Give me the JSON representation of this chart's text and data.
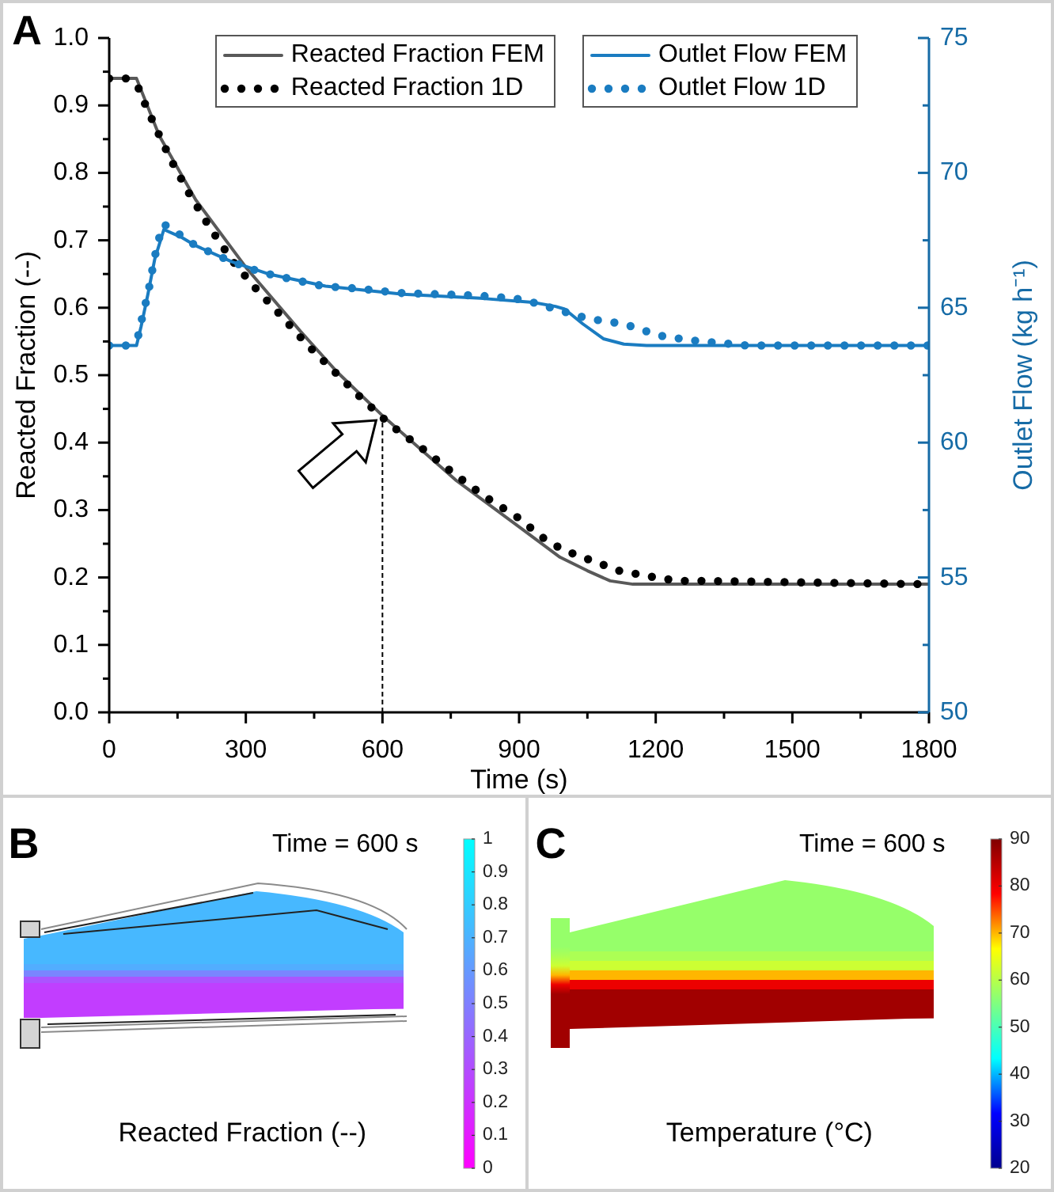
{
  "chart_data": [
    {
      "type": "line",
      "annotations": [
        "A"
      ],
      "xlabel": "Time (s)",
      "ylabel": "Reacted Fraction (--)",
      "y2label": "Outlet Flow (kg h⁻¹)",
      "xlim": [
        0,
        1800
      ],
      "xticks": [
        0,
        {
          "value": 150,
          "label": null
        },
        300,
        {
          "value": 450,
          "label": null
        },
        600,
        {
          "value": 750,
          "label": null
        },
        900,
        {
          "value": 1050,
          "label": null
        },
        1200,
        {
          "value": 1350,
          "label": null
        },
        1500,
        {
          "value": 1650,
          "label": null
        },
        1800
      ],
      "ylim": [
        0,
        1
      ],
      "yticks": [
        {
          "value": 0,
          "label": "0.0"
        },
        {
          "value": 0.05,
          "label": null
        },
        0.1,
        {
          "value": 0.15,
          "label": null
        },
        0.2,
        {
          "value": 0.25,
          "label": null
        },
        0.3,
        {
          "value": 0.35,
          "label": null
        },
        0.4,
        {
          "value": 0.45,
          "label": null
        },
        0.5,
        {
          "value": 0.55,
          "label": null
        },
        0.6,
        {
          "value": 0.65,
          "label": null
        },
        0.7,
        {
          "value": 0.75,
          "label": null
        },
        0.8,
        {
          "value": 0.85,
          "label": null
        },
        0.9,
        {
          "value": 0.95,
          "label": null
        },
        {
          "value": 1,
          "label": "1.0"
        }
      ],
      "y2lim": [
        50,
        75
      ],
      "y2ticks": [
        50,
        {
          "value": 52.5,
          "label": null
        },
        55,
        {
          "value": 57.5,
          "label": null
        },
        60,
        {
          "value": 62.5,
          "label": null
        },
        65,
        {
          "value": 67.5,
          "label": null
        },
        70,
        {
          "value": 72.5,
          "label": null
        },
        75
      ],
      "legend": "top",
      "ref_lines": [
        {
          "axis": "x",
          "value": 600,
          "line_style": "dashed",
          "color": "#000000"
        }
      ],
      "series": [
        {
          "name": "Reacted Fraction FEM",
          "color": "#595959",
          "line_style": "solid",
          "x": [
            0,
            60,
            110,
            190,
            300,
            420,
            500,
            600,
            760,
            900,
            990,
            1050,
            1100,
            1150,
            1800
          ],
          "values": [
            0.94,
            0.94,
            0.855,
            0.76,
            0.66,
            0.565,
            0.505,
            0.44,
            0.345,
            0.275,
            0.23,
            0.21,
            0.195,
            0.19,
            0.19
          ]
        },
        {
          "name": "Reacted Fraction 1D",
          "color": "#000000",
          "line_style": "dotted",
          "x": [
            0,
            40,
            65,
            80,
            100,
            135,
            175,
            220,
            270,
            320,
            375,
            435,
            495,
            555,
            620,
            690,
            755,
            825,
            895,
            960,
            1000,
            1040,
            1080,
            1120,
            1160,
            1200,
            1250,
            1300,
            1800
          ],
          "values": [
            0.94,
            0.94,
            0.925,
            0.9,
            0.87,
            0.82,
            0.77,
            0.72,
            0.67,
            0.63,
            0.59,
            0.545,
            0.505,
            0.465,
            0.425,
            0.39,
            0.355,
            0.32,
            0.29,
            0.255,
            0.24,
            0.23,
            0.22,
            0.21,
            0.205,
            0.2,
            0.195,
            0.195,
            0.19
          ]
        },
        {
          "name": "Outlet Flow FEM",
          "color": "#1a7cc1",
          "line_style": "solid",
          "axis": "y2",
          "x": [
            0,
            60,
            70,
            85,
            100,
            120,
            160,
            190,
            270,
            350,
            475,
            645,
            815,
            930,
            980,
            1000,
            1040,
            1085,
            1130,
            1180,
            1800
          ],
          "values": [
            63.6,
            63.6,
            64.3,
            65.5,
            66.8,
            67.9,
            67.6,
            67.3,
            66.7,
            66.25,
            65.8,
            65.5,
            65.35,
            65.2,
            65.05,
            64.95,
            64.4,
            63.85,
            63.65,
            63.6,
            63.6
          ]
        },
        {
          "name": "Outlet Flow 1D",
          "color": "#1a7cc1",
          "line_style": "dotted",
          "axis": "y2",
          "x": [
            0,
            40,
            65,
            73,
            85,
            99,
            108,
            120,
            156,
            190,
            230,
            270,
            310,
            350,
            390,
            430,
            470,
            555,
            635,
            725,
            810,
            890,
            930,
            970,
            1010,
            1050,
            1090,
            1130,
            1175,
            1215,
            1255,
            1300,
            1340,
            1400,
            1800
          ],
          "values": [
            63.6,
            63.6,
            64.0,
            64.7,
            65.5,
            66.8,
            67.5,
            68.1,
            67.7,
            67.3,
            67.0,
            66.7,
            66.45,
            66.25,
            66.1,
            65.95,
            65.8,
            65.7,
            65.55,
            65.5,
            65.45,
            65.35,
            65.2,
            65.0,
            64.8,
            64.6,
            64.5,
            64.4,
            64.15,
            63.95,
            63.85,
            63.75,
            63.7,
            63.6,
            63.6
          ]
        }
      ]
    },
    {
      "type": "heatmap",
      "annotations": [
        "B"
      ],
      "title": "Time = 600 s",
      "clabel": "Reacted Fraction (--)",
      "categories": [
        null
      ],
      "y_categories": [
        null,
        null,
        null,
        null,
        null,
        null,
        null,
        null,
        null,
        null,
        null
      ],
      "cells": [
        [
          0.72
        ],
        [
          0.72
        ],
        [
          0.72
        ],
        [
          0.72
        ],
        [
          0.68
        ],
        [
          0.52
        ],
        [
          0.33
        ],
        [
          0.25
        ],
        [
          0.24
        ],
        [
          0.24
        ],
        [
          0.24
        ]
      ],
      "clim": [
        0,
        1
      ],
      "cticks": [
        0,
        0.1,
        0.2,
        0.3,
        0.4,
        0.5,
        0.6,
        0.7,
        0.8,
        0.9,
        1
      ],
      "colors": [
        "#ff00ff",
        "#00ffff"
      ]
    },
    {
      "type": "heatmap",
      "annotations": [
        "C"
      ],
      "title": "Time = 600 s",
      "clabel": "Temperature (°C)",
      "categories": [
        null
      ],
      "y_categories": [
        null,
        null,
        null,
        null,
        null,
        null,
        null,
        null,
        null
      ],
      "cells": [
        [
          57
        ],
        [
          57
        ],
        [
          59
        ],
        [
          62
        ],
        [
          70
        ],
        [
          80
        ],
        [
          87
        ],
        [
          87
        ],
        [
          87
        ]
      ],
      "clim": [
        20,
        90
      ],
      "cticks": [
        20,
        30,
        40,
        50,
        60,
        70,
        80,
        90
      ],
      "colors": [
        "#00008f",
        "#0000ff",
        "#00ffff",
        "#80ff80",
        "#ffff00",
        "#ff0000",
        "#800000"
      ]
    }
  ]
}
